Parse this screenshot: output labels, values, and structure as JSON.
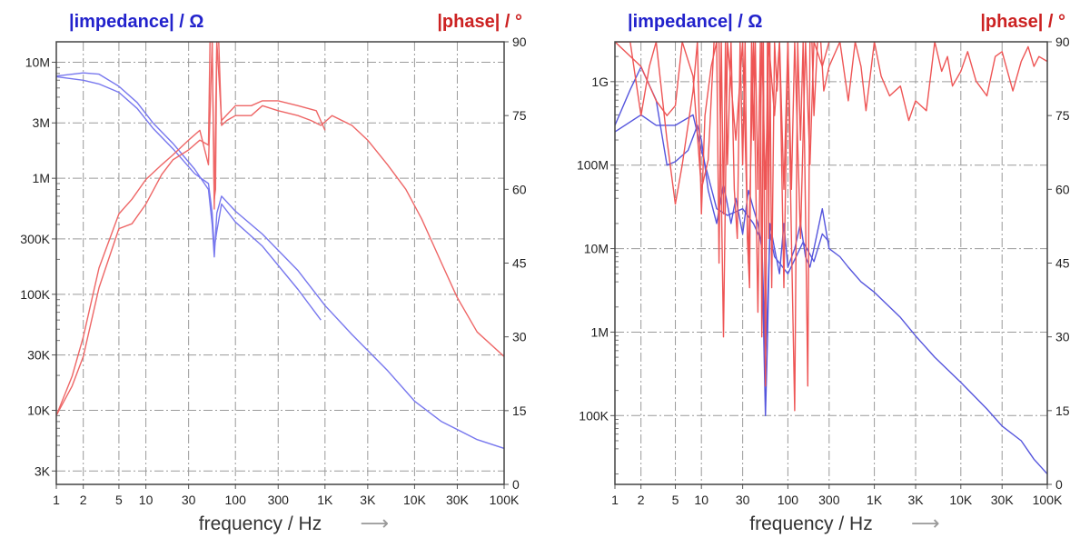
{
  "chart_data": [
    {
      "type": "line",
      "x_scale": "log",
      "xlim": [
        1,
        100000
      ],
      "xlabel": "frequency / Hz",
      "x_ticks": [
        {
          "v": 1,
          "label": "1"
        },
        {
          "v": 2,
          "label": "2"
        },
        {
          "v": 5,
          "label": "5"
        },
        {
          "v": 10,
          "label": "10"
        },
        {
          "v": 30,
          "label": "30"
        },
        {
          "v": 100,
          "label": "100"
        },
        {
          "v": 300,
          "label": "300"
        },
        {
          "v": 1000,
          "label": "1K"
        },
        {
          "v": 3000,
          "label": "3K"
        },
        {
          "v": 10000,
          "label": "10K"
        },
        {
          "v": 30000,
          "label": "30K"
        },
        {
          "v": 100000,
          "label": "100K"
        }
      ],
      "ylabel_left": "|impedance| / Ω",
      "y_left_scale": "log",
      "y_left_lim": [
        2300,
        15000000
      ],
      "y_left_ticks": [
        {
          "v": 3000,
          "label": "3K"
        },
        {
          "v": 10000,
          "label": "10K"
        },
        {
          "v": 30000,
          "label": "30K"
        },
        {
          "v": 100000,
          "label": "100K"
        },
        {
          "v": 300000,
          "label": "300K"
        },
        {
          "v": 1000000,
          "label": "1M"
        },
        {
          "v": 3000000,
          "label": "3M"
        },
        {
          "v": 10000000,
          "label": "10M"
        }
      ],
      "ylabel_right": "|phase| / °",
      "y_right_lim": [
        0,
        90
      ],
      "y_right_ticks": [
        {
          "v": 0,
          "label": "0"
        },
        {
          "v": 15,
          "label": "15"
        },
        {
          "v": 30,
          "label": "30"
        },
        {
          "v": 45,
          "label": "45"
        },
        {
          "v": 60,
          "label": "60"
        },
        {
          "v": 75,
          "label": "75"
        },
        {
          "v": 90,
          "label": "90"
        }
      ],
      "grid": true,
      "series": [
        {
          "axis": "left",
          "color": "#7777ee",
          "x": [
            1,
            2,
            3,
            5,
            8,
            12,
            20,
            35,
            50,
            55,
            58,
            62,
            70,
            100,
            200,
            500,
            1000,
            2000,
            5000,
            10000,
            20000,
            50000,
            100000
          ],
          "y": [
            7600000,
            8100000,
            7900000,
            6200000,
            4500000,
            3000000,
            2000000,
            1200000,
            800000,
            400000,
            210000,
            500000,
            700000,
            520000,
            330000,
            160000,
            80000,
            45000,
            22000,
            12000,
            8000,
            5600,
            4700
          ]
        },
        {
          "axis": "left",
          "color": "#7777ee",
          "x": [
            1,
            2,
            3,
            5,
            8,
            12,
            20,
            35,
            50,
            55,
            58,
            62,
            70,
            100,
            200,
            500,
            900
          ],
          "y": [
            7500000,
            7000000,
            6500000,
            5500000,
            4000000,
            2700000,
            1800000,
            1100000,
            900000,
            500000,
            250000,
            350000,
            600000,
            420000,
            260000,
            110000,
            60000
          ]
        },
        {
          "axis": "right",
          "color": "#ee6666",
          "x": [
            1,
            1.5,
            2,
            3,
            5,
            7,
            10,
            15,
            20,
            30,
            40,
            50,
            52,
            55,
            58,
            60,
            62,
            65,
            70,
            80,
            100,
            150,
            200,
            300,
            500,
            700,
            900,
            1200,
            2000,
            3000,
            5000,
            8000,
            12000,
            20000,
            30000,
            50000,
            100000
          ],
          "y": [
            14,
            20,
            26,
            40,
            52,
            53,
            57,
            63,
            66,
            68,
            70,
            69,
            90,
            90,
            58,
            60,
            90,
            90,
            73,
            74,
            75,
            75,
            77,
            76,
            75,
            74,
            73,
            75,
            73,
            70,
            65,
            60,
            54,
            45,
            38,
            31,
            26
          ]
        },
        {
          "axis": "right",
          "color": "#ee6666",
          "x": [
            1,
            1.5,
            2,
            3,
            5,
            7,
            10,
            15,
            20,
            30,
            40,
            50,
            55,
            58,
            62,
            70,
            100,
            150,
            200,
            300,
            500,
            800,
            1000
          ],
          "y": [
            14,
            22,
            30,
            44,
            55,
            58,
            62,
            65,
            67,
            70,
            72,
            65,
            90,
            56,
            90,
            74,
            77,
            77,
            78,
            78,
            77,
            76,
            72
          ]
        }
      ]
    },
    {
      "type": "line",
      "x_scale": "log",
      "xlim": [
        1,
        100000
      ],
      "xlabel": "frequency / Hz",
      "x_ticks": [
        {
          "v": 1,
          "label": "1"
        },
        {
          "v": 2,
          "label": "2"
        },
        {
          "v": 5,
          "label": "5"
        },
        {
          "v": 10,
          "label": "10"
        },
        {
          "v": 30,
          "label": "30"
        },
        {
          "v": 100,
          "label": "100"
        },
        {
          "v": 300,
          "label": "300"
        },
        {
          "v": 1000,
          "label": "1K"
        },
        {
          "v": 3000,
          "label": "3K"
        },
        {
          "v": 10000,
          "label": "10K"
        },
        {
          "v": 30000,
          "label": "30K"
        },
        {
          "v": 100000,
          "label": "100K"
        }
      ],
      "ylabel_left": "|impedance| / Ω",
      "y_left_scale": "log",
      "y_left_lim": [
        15000,
        3000000000
      ],
      "y_left_ticks": [
        {
          "v": 100000,
          "label": "100K"
        },
        {
          "v": 1000000,
          "label": "1M"
        },
        {
          "v": 10000000,
          "label": "10M"
        },
        {
          "v": 100000000,
          "label": "100M"
        },
        {
          "v": 1000000000,
          "label": "1G"
        }
      ],
      "ylabel_right": "|phase| / °",
      "y_right_lim": [
        0,
        90
      ],
      "y_right_ticks": [
        {
          "v": 0,
          "label": "0"
        },
        {
          "v": 15,
          "label": "15"
        },
        {
          "v": 30,
          "label": "30"
        },
        {
          "v": 45,
          "label": "45"
        },
        {
          "v": 60,
          "label": "60"
        },
        {
          "v": 75,
          "label": "75"
        },
        {
          "v": 90,
          "label": "90"
        }
      ],
      "grid": true,
      "series": [
        {
          "axis": "left",
          "color": "#5555dd",
          "x": [
            1,
            1.5,
            2,
            3,
            4,
            5,
            7,
            9,
            10,
            12,
            15,
            18,
            22,
            25,
            30,
            35,
            40,
            45,
            50,
            55,
            58,
            62,
            70,
            80,
            90,
            100,
            120,
            140,
            160,
            180,
            200,
            250,
            300,
            400,
            500,
            700,
            1000,
            2000,
            3000,
            5000,
            10000,
            20000,
            30000,
            50000,
            70000,
            100000
          ],
          "y": [
            300000000,
            800000000,
            1500000000,
            600000000,
            100000000,
            110000000,
            150000000,
            300000000,
            200000000,
            50000000,
            20000000,
            60000000,
            20000000,
            40000000,
            15000000,
            50000000,
            30000000,
            20000000,
            10000000,
            100000,
            800000,
            20000000,
            10000000,
            5000000,
            20000000,
            6000000,
            10000000,
            20000000,
            8000000,
            6000000,
            10000000,
            30000000,
            10000000,
            8000000,
            6000000,
            4000000,
            3000000,
            1500000,
            900000,
            500000,
            250000,
            120000,
            75000,
            50000,
            30000,
            20000
          ]
        },
        {
          "axis": "left",
          "color": "#5555dd",
          "x": [
            1,
            2,
            3,
            5,
            8,
            10,
            15,
            20,
            30,
            40,
            50,
            55,
            58,
            62,
            70,
            100,
            150,
            200,
            250,
            300
          ],
          "y": [
            250000000,
            400000000,
            300000000,
            300000000,
            400000000,
            150000000,
            30000000,
            25000000,
            30000000,
            20000000,
            12000000,
            500000,
            2000000,
            15000000,
            8000000,
            5000000,
            12000000,
            7000000,
            15000000,
            12000000
          ]
        },
        {
          "axis": "right",
          "color": "#ee5555",
          "x": [
            1,
            1.5,
            2,
            2.5,
            3,
            4,
            5,
            6,
            8,
            9,
            10,
            11,
            13,
            15,
            16,
            17,
            18,
            19,
            20,
            22,
            24,
            26,
            28,
            30,
            32,
            34,
            36,
            38,
            40,
            42,
            45,
            48,
            50,
            52,
            55,
            58,
            60,
            62,
            65,
            70,
            75,
            80,
            90,
            100,
            110,
            120,
            130,
            140,
            150,
            160,
            170,
            180,
            190,
            200,
            220,
            240,
            260,
            300,
            400,
            500,
            600,
            700,
            800,
            1000,
            1200,
            1500,
            2000,
            2500,
            3000,
            4000,
            5000,
            6000,
            7000,
            8000,
            10000,
            12000,
            15000,
            20000,
            25000,
            30000,
            40000,
            50000,
            60000,
            70000,
            80000,
            100000
          ],
          "y": [
            90,
            90,
            75,
            85,
            90,
            70,
            57,
            65,
            80,
            90,
            55,
            75,
            85,
            90,
            45,
            90,
            55,
            90,
            65,
            90,
            60,
            50,
            90,
            65,
            90,
            50,
            40,
            90,
            70,
            90,
            60,
            90,
            30,
            90,
            20,
            90,
            50,
            90,
            40,
            90,
            80,
            90,
            60,
            90,
            50,
            15,
            90,
            70,
            90,
            55,
            20,
            90,
            90,
            75,
            90,
            90,
            80,
            85,
            90,
            78,
            90,
            85,
            76,
            90,
            83,
            79,
            81,
            74,
            78,
            76,
            90,
            84,
            87,
            81,
            84,
            88,
            82,
            79,
            87,
            88,
            80,
            86,
            89,
            85,
            87,
            86
          ]
        },
        {
          "axis": "right",
          "color": "#ee5555",
          "x": [
            1,
            2,
            3,
            4,
            5,
            6,
            8,
            10,
            12,
            14,
            16,
            18,
            20,
            25,
            30,
            35,
            40,
            45,
            50,
            55,
            60,
            70,
            80,
            90,
            100,
            110,
            120,
            140,
            160,
            180,
            200,
            250,
            300
          ],
          "y": [
            90,
            85,
            78,
            75,
            77,
            90,
            83,
            60,
            66,
            90,
            90,
            30,
            90,
            70,
            90,
            45,
            90,
            35,
            90,
            60,
            90,
            75,
            90,
            40,
            90,
            60,
            90,
            50,
            90,
            65,
            90,
            85,
            90
          ]
        }
      ]
    }
  ]
}
